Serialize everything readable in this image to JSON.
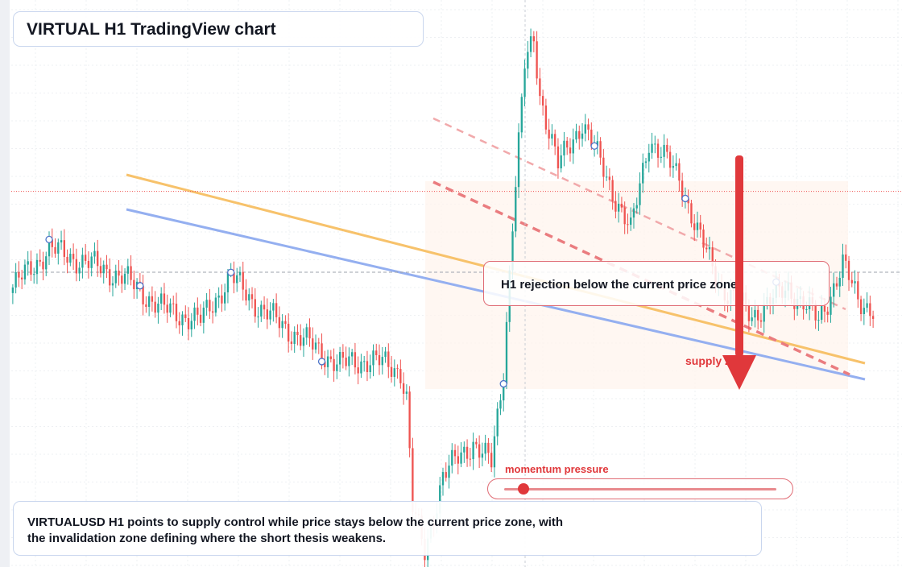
{
  "header": {
    "title": "VIRTUAL H1 TradingView chart"
  },
  "callout": {
    "text": "H1 rejection below the current price zone"
  },
  "summary": {
    "line1": "VIRTUALUSD H1 points to supply control while price stays below the current price zone, with",
    "line2": "the invalidation zone defining where the short thesis weakens."
  },
  "labels": {
    "momentum": "momentum pressure",
    "supply": "supply zone"
  },
  "momentum": {
    "value": 0.07
  },
  "colors": {
    "bull": "#26a69a",
    "bear": "#ef5350",
    "accent": "#e0383b",
    "ma_fast": "#f7c26b",
    "ma_slow": "#94aff0",
    "trend": "#ea7c7f"
  },
  "chart_data": {
    "type": "candlestick",
    "x": "bar index (hourly)",
    "ylim": [
      0,
      100
    ],
    "current_price": 67.4,
    "ohlc_anchors": [
      [
        0,
        50
      ],
      [
        12,
        57
      ],
      [
        22,
        55
      ],
      [
        36,
        52
      ],
      [
        50,
        46
      ],
      [
        62,
        44
      ],
      [
        72,
        52
      ],
      [
        82,
        46
      ],
      [
        92,
        42
      ],
      [
        108,
        36
      ],
      [
        118,
        37
      ],
      [
        128,
        35
      ],
      [
        130,
        30
      ],
      [
        132,
        10
      ],
      [
        136,
        2
      ],
      [
        142,
        16
      ],
      [
        152,
        22
      ],
      [
        158,
        18
      ],
      [
        162,
        35
      ],
      [
        165,
        62
      ],
      [
        169,
        90
      ],
      [
        172,
        95
      ],
      [
        174,
        85
      ],
      [
        180,
        72
      ],
      [
        188,
        80
      ],
      [
        196,
        70
      ],
      [
        204,
        60
      ],
      [
        210,
        77
      ],
      [
        220,
        70
      ],
      [
        226,
        60
      ],
      [
        234,
        50
      ],
      [
        244,
        45
      ],
      [
        256,
        50
      ],
      [
        266,
        44
      ],
      [
        274,
        54
      ],
      [
        279,
        48
      ],
      [
        284,
        46
      ]
    ]
  }
}
